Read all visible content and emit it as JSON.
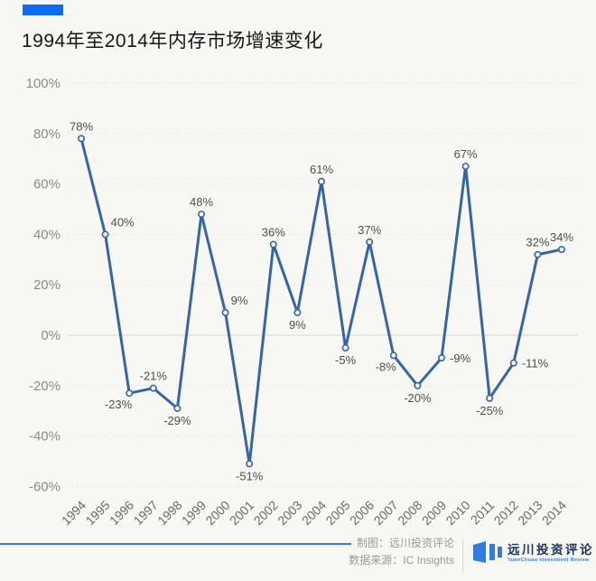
{
  "page": {
    "accent_color": "#0b6df6",
    "background_color": "#f7f7f4"
  },
  "header": {
    "title": "1994年至2014年内存市场增速变化"
  },
  "chart_data": {
    "type": "line",
    "title": "1994年至2014年内存市场增速变化",
    "categories": [
      "1994",
      "1995",
      "1996",
      "1997",
      "1998",
      "1999",
      "2000",
      "2001",
      "2002",
      "2003",
      "2004",
      "2005",
      "2006",
      "2007",
      "2008",
      "2009",
      "2010",
      "2011",
      "2012",
      "2013",
      "2014"
    ],
    "values": [
      78,
      40,
      -23,
      -21,
      -29,
      48,
      9,
      -51,
      36,
      9,
      61,
      -5,
      37,
      -8,
      -20,
      -9,
      67,
      -25,
      -11,
      32,
      34
    ],
    "value_suffix": "%",
    "xlabel": "",
    "ylabel": "",
    "ylim": [
      -60,
      100
    ],
    "ytick_step": 20,
    "yticks": [
      "100%",
      "80%",
      "60%",
      "40%",
      "20%",
      "0%",
      "-20%",
      "-40%",
      "-60%"
    ],
    "grid": "horizontal-dotted",
    "zero_line": "solid",
    "legend": "none",
    "line_color": "#3565a8",
    "marker": "hollow-circle",
    "label_positions": [
      "above",
      "above-right",
      "below-left",
      "above",
      "below",
      "above",
      "above-right",
      "below",
      "above",
      "below",
      "above",
      "below",
      "above",
      "below-left",
      "below",
      "right",
      "above",
      "below",
      "right",
      "above",
      "above"
    ]
  },
  "footer": {
    "credit_label": "制图：",
    "credit_value": "远川投资评论",
    "source_label": "数据来源：",
    "source_value": "IC Insights",
    "logo": {
      "cn": "远川投资评论",
      "en": "YuanChuan Investment Review",
      "bar_color": "#2f7de2",
      "cn_color": "#1c3261",
      "en_color": "#2f7de2"
    }
  }
}
